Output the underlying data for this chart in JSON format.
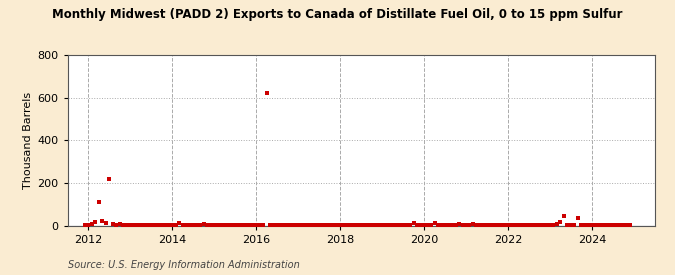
{
  "title": "Monthly Midwest (PADD 2) Exports to Canada of Distillate Fuel Oil, 0 to 15 ppm Sulfur",
  "ylabel": "Thousand Barrels",
  "source": "Source: U.S. Energy Information Administration",
  "bg_color": "#faecd2",
  "plot_bg_color": "#ffffff",
  "marker_color": "#cc0000",
  "ylim": [
    0,
    800
  ],
  "yticks": [
    0,
    200,
    400,
    600,
    800
  ],
  "xlim_start": 2011.5,
  "xlim_end": 2025.5,
  "xticks": [
    2012,
    2014,
    2016,
    2018,
    2020,
    2022,
    2024
  ],
  "data": [
    [
      2011.917,
      1
    ],
    [
      2012.0,
      2
    ],
    [
      2012.083,
      5
    ],
    [
      2012.167,
      15
    ],
    [
      2012.25,
      110
    ],
    [
      2012.333,
      20
    ],
    [
      2012.417,
      10
    ],
    [
      2012.5,
      220
    ],
    [
      2012.583,
      5
    ],
    [
      2012.667,
      3
    ],
    [
      2012.75,
      5
    ],
    [
      2012.833,
      3
    ],
    [
      2012.917,
      2
    ],
    [
      2013.0,
      2
    ],
    [
      2013.083,
      2
    ],
    [
      2013.167,
      2
    ],
    [
      2013.25,
      2
    ],
    [
      2013.333,
      3
    ],
    [
      2013.417,
      2
    ],
    [
      2013.5,
      1
    ],
    [
      2013.583,
      1
    ],
    [
      2013.667,
      2
    ],
    [
      2013.75,
      2
    ],
    [
      2013.833,
      2
    ],
    [
      2013.917,
      1
    ],
    [
      2014.0,
      2
    ],
    [
      2014.083,
      4
    ],
    [
      2014.167,
      10
    ],
    [
      2014.25,
      3
    ],
    [
      2014.333,
      2
    ],
    [
      2014.417,
      1
    ],
    [
      2014.5,
      1
    ],
    [
      2014.583,
      2
    ],
    [
      2014.667,
      3
    ],
    [
      2014.75,
      5
    ],
    [
      2014.833,
      1
    ],
    [
      2014.917,
      2
    ],
    [
      2015.0,
      3
    ],
    [
      2015.083,
      2
    ],
    [
      2015.167,
      3
    ],
    [
      2015.25,
      4
    ],
    [
      2015.333,
      3
    ],
    [
      2015.417,
      2
    ],
    [
      2015.5,
      3
    ],
    [
      2015.583,
      3
    ],
    [
      2015.667,
      2
    ],
    [
      2015.75,
      3
    ],
    [
      2015.833,
      4
    ],
    [
      2015.917,
      3
    ],
    [
      2016.0,
      4
    ],
    [
      2016.083,
      3
    ],
    [
      2016.167,
      3
    ],
    [
      2016.25,
      620
    ],
    [
      2016.333,
      4
    ],
    [
      2016.417,
      3
    ],
    [
      2016.5,
      3
    ],
    [
      2016.583,
      2
    ],
    [
      2016.667,
      2
    ],
    [
      2016.75,
      3
    ],
    [
      2016.833,
      2
    ],
    [
      2016.917,
      2
    ],
    [
      2017.0,
      2
    ],
    [
      2017.083,
      2
    ],
    [
      2017.167,
      2
    ],
    [
      2017.25,
      2
    ],
    [
      2017.333,
      2
    ],
    [
      2017.417,
      1
    ],
    [
      2017.5,
      2
    ],
    [
      2017.583,
      2
    ],
    [
      2017.667,
      2
    ],
    [
      2017.75,
      2
    ],
    [
      2017.833,
      2
    ],
    [
      2017.917,
      1
    ],
    [
      2018.0,
      2
    ],
    [
      2018.083,
      2
    ],
    [
      2018.167,
      2
    ],
    [
      2018.25,
      1
    ],
    [
      2018.333,
      2
    ],
    [
      2018.417,
      2
    ],
    [
      2018.5,
      2
    ],
    [
      2018.583,
      1
    ],
    [
      2018.667,
      2
    ],
    [
      2018.75,
      2
    ],
    [
      2018.833,
      2
    ],
    [
      2018.917,
      1
    ],
    [
      2019.0,
      2
    ],
    [
      2019.083,
      2
    ],
    [
      2019.167,
      4
    ],
    [
      2019.25,
      3
    ],
    [
      2019.333,
      2
    ],
    [
      2019.417,
      1
    ],
    [
      2019.5,
      2
    ],
    [
      2019.583,
      2
    ],
    [
      2019.667,
      4
    ],
    [
      2019.75,
      12
    ],
    [
      2019.833,
      3
    ],
    [
      2019.917,
      2
    ],
    [
      2020.0,
      3
    ],
    [
      2020.083,
      4
    ],
    [
      2020.167,
      2
    ],
    [
      2020.25,
      12
    ],
    [
      2020.333,
      3
    ],
    [
      2020.417,
      2
    ],
    [
      2020.5,
      3
    ],
    [
      2020.583,
      2
    ],
    [
      2020.667,
      4
    ],
    [
      2020.75,
      3
    ],
    [
      2020.833,
      8
    ],
    [
      2020.917,
      2
    ],
    [
      2021.0,
      3
    ],
    [
      2021.083,
      4
    ],
    [
      2021.167,
      8
    ],
    [
      2021.25,
      3
    ],
    [
      2021.333,
      4
    ],
    [
      2021.417,
      2
    ],
    [
      2021.5,
      3
    ],
    [
      2021.583,
      4
    ],
    [
      2021.667,
      3
    ],
    [
      2021.75,
      2
    ],
    [
      2021.833,
      4
    ],
    [
      2021.917,
      2
    ],
    [
      2022.0,
      2
    ],
    [
      2022.083,
      3
    ],
    [
      2022.167,
      2
    ],
    [
      2022.25,
      3
    ],
    [
      2022.333,
      4
    ],
    [
      2022.417,
      2
    ],
    [
      2022.5,
      3
    ],
    [
      2022.583,
      4
    ],
    [
      2022.667,
      3
    ],
    [
      2022.75,
      2
    ],
    [
      2022.833,
      3
    ],
    [
      2022.917,
      4
    ],
    [
      2023.0,
      3
    ],
    [
      2023.083,
      4
    ],
    [
      2023.167,
      6
    ],
    [
      2023.25,
      18
    ],
    [
      2023.333,
      45
    ],
    [
      2023.417,
      3
    ],
    [
      2023.5,
      2
    ],
    [
      2023.583,
      3
    ],
    [
      2023.667,
      35
    ],
    [
      2023.75,
      4
    ],
    [
      2023.833,
      3
    ],
    [
      2023.917,
      2
    ],
    [
      2024.0,
      4
    ],
    [
      2024.083,
      3
    ],
    [
      2024.167,
      2
    ],
    [
      2024.25,
      3
    ],
    [
      2024.333,
      4
    ],
    [
      2024.417,
      2
    ],
    [
      2024.5,
      3
    ],
    [
      2024.583,
      2
    ],
    [
      2024.667,
      3
    ],
    [
      2024.75,
      4
    ],
    [
      2024.833,
      2
    ],
    [
      2024.917,
      1
    ]
  ]
}
